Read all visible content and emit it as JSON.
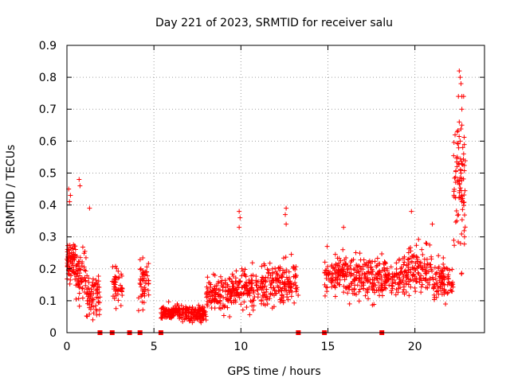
{
  "chart_data": {
    "type": "scatter",
    "title": "Day 221 of 2023, SRMTID for receiver salu",
    "xlabel": "GPS time / hours",
    "ylabel": "SRMTID / TECUs",
    "xlim": [
      0,
      24
    ],
    "ylim": [
      0,
      0.9
    ],
    "xticks": [
      0,
      5,
      10,
      15,
      20
    ],
    "yticks": [
      0,
      0.1,
      0.2,
      0.3,
      0.4,
      0.5,
      0.6,
      0.7,
      0.8,
      0.9
    ],
    "ytick_labels": [
      "0",
      "0.1",
      "0.2",
      "0.3",
      "0.4",
      "0.5",
      "0.6",
      "0.7",
      "0.8",
      "0.9"
    ],
    "grid": true,
    "marker": "+",
    "color": "#ff0000",
    "gap_markers_x": [
      1.9,
      2.6,
      3.6,
      4.2,
      5.4,
      13.3,
      14.8,
      18.1
    ],
    "segments": [
      {
        "x_start": 0.0,
        "x_end": 0.5,
        "median": 0.22,
        "spread": 0.06,
        "count": 70
      },
      {
        "x_start": 0.5,
        "x_end": 1.1,
        "median": 0.17,
        "spread": 0.07,
        "count": 60
      },
      {
        "x_start": 1.1,
        "x_end": 1.9,
        "median": 0.12,
        "spread": 0.05,
        "count": 70
      },
      {
        "x_start": 2.6,
        "x_end": 3.2,
        "median": 0.14,
        "spread": 0.05,
        "count": 45
      },
      {
        "x_start": 4.1,
        "x_end": 4.7,
        "median": 0.16,
        "spread": 0.06,
        "count": 50
      },
      {
        "x_start": 5.4,
        "x_end": 6.5,
        "median": 0.065,
        "spread": 0.02,
        "count": 110
      },
      {
        "x_start": 6.5,
        "x_end": 8.0,
        "median": 0.06,
        "spread": 0.02,
        "count": 130
      },
      {
        "x_start": 8.0,
        "x_end": 9.5,
        "median": 0.12,
        "spread": 0.045,
        "count": 120
      },
      {
        "x_start": 9.5,
        "x_end": 11.5,
        "median": 0.14,
        "spread": 0.05,
        "count": 160
      },
      {
        "x_start": 11.5,
        "x_end": 13.3,
        "median": 0.16,
        "spread": 0.055,
        "count": 140
      },
      {
        "x_start": 14.8,
        "x_end": 16.0,
        "median": 0.19,
        "spread": 0.05,
        "count": 100
      },
      {
        "x_start": 16.0,
        "x_end": 18.1,
        "median": 0.17,
        "spread": 0.06,
        "count": 170
      },
      {
        "x_start": 18.1,
        "x_end": 19.6,
        "median": 0.17,
        "spread": 0.05,
        "count": 110
      },
      {
        "x_start": 19.6,
        "x_end": 21.0,
        "median": 0.2,
        "spread": 0.06,
        "count": 110
      },
      {
        "x_start": 21.0,
        "x_end": 22.2,
        "median": 0.16,
        "spread": 0.05,
        "count": 90
      },
      {
        "x_start": 22.2,
        "x_end": 22.9,
        "median": 0.45,
        "spread": 0.18,
        "count": 80
      }
    ],
    "notable_points": [
      {
        "x": 0.1,
        "y": 0.45
      },
      {
        "x": 0.2,
        "y": 0.43
      },
      {
        "x": 0.7,
        "y": 0.48
      },
      {
        "x": 0.75,
        "y": 0.46
      },
      {
        "x": 1.3,
        "y": 0.39
      },
      {
        "x": 0.15,
        "y": 0.41
      },
      {
        "x": 9.9,
        "y": 0.38
      },
      {
        "x": 9.95,
        "y": 0.36
      },
      {
        "x": 9.9,
        "y": 0.33
      },
      {
        "x": 12.6,
        "y": 0.39
      },
      {
        "x": 12.55,
        "y": 0.37
      },
      {
        "x": 12.6,
        "y": 0.34
      },
      {
        "x": 15.9,
        "y": 0.33
      },
      {
        "x": 19.8,
        "y": 0.38
      },
      {
        "x": 21.0,
        "y": 0.34
      },
      {
        "x": 22.55,
        "y": 0.82
      },
      {
        "x": 22.6,
        "y": 0.8
      },
      {
        "x": 22.65,
        "y": 0.78
      },
      {
        "x": 22.5,
        "y": 0.74
      },
      {
        "x": 22.7,
        "y": 0.74
      },
      {
        "x": 22.8,
        "y": 0.74
      },
      {
        "x": 22.7,
        "y": 0.7
      },
      {
        "x": 22.55,
        "y": 0.66
      },
      {
        "x": 22.7,
        "y": 0.65
      },
      {
        "x": 22.6,
        "y": 0.6
      },
      {
        "x": 22.75,
        "y": 0.58
      },
      {
        "x": 22.8,
        "y": 0.56
      },
      {
        "x": 22.5,
        "y": 0.53
      },
      {
        "x": 22.65,
        "y": 0.5
      },
      {
        "x": 22.7,
        "y": 0.41
      },
      {
        "x": 22.85,
        "y": 0.3
      }
    ]
  }
}
